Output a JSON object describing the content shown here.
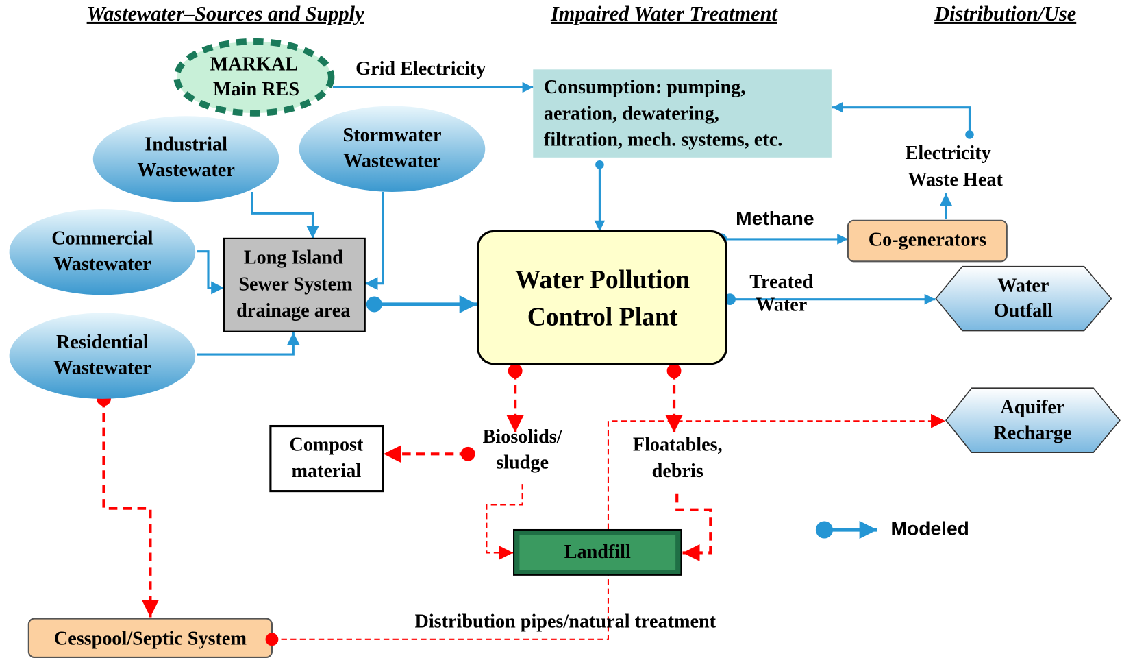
{
  "headers": [
    "Wastewater–Sources and Supply",
    "Impaired Water Treatment",
    "Distribution/Use"
  ],
  "nodes": {
    "markal": [
      "MARKAL",
      "Main RES"
    ],
    "industrial": [
      "Industrial",
      "Wastewater"
    ],
    "stormwater": [
      "Stormwater",
      "Wastewater"
    ],
    "commercial": [
      "Commercial",
      "Wastewater"
    ],
    "residential": [
      "Residential",
      "Wastewater"
    ],
    "sewer": [
      "Long Island",
      "Sewer System",
      "drainage area"
    ],
    "consumption": [
      "Consumption: pumping,",
      "aeration, dewatering,",
      "filtration, mech. systems, etc."
    ],
    "plant": [
      "Water Pollution",
      "Control Plant"
    ],
    "cogen": [
      "Co-generators"
    ],
    "outfall": [
      "Water",
      "Outfall"
    ],
    "aquifer": [
      "Aquifer",
      "Recharge"
    ],
    "compost": [
      "Compost",
      "material"
    ],
    "landfill": [
      "Landfill"
    ],
    "cesspool": [
      "Cesspool/Septic System"
    ]
  },
  "edge_labels": {
    "grid": [
      "Grid Electricity"
    ],
    "electricity": [
      "Electricity",
      "Waste Heat"
    ],
    "methane": [
      "Methane"
    ],
    "treated": [
      "Treated",
      "Water"
    ],
    "biosolids": [
      "Biosolids/",
      "sludge"
    ],
    "floatables": [
      "Floatables,",
      "debris"
    ],
    "distribution": [
      "Distribution pipes/natural treatment"
    ]
  },
  "legend": "Modeled"
}
